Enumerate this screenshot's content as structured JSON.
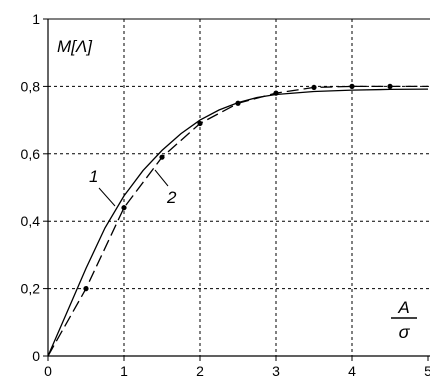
{
  "chart_data": {
    "type": "line",
    "x_ticks": [
      "0",
      "1",
      "2",
      "3",
      "4",
      "5"
    ],
    "y_ticks": [
      "0",
      "0,2",
      "0,4",
      "0,6",
      "0,8",
      "1"
    ],
    "xlim": [
      0,
      5
    ],
    "ylim": [
      0,
      1
    ],
    "ylabel": "M[Λ]",
    "xlabel_num": "A",
    "xlabel_den": "σ",
    "grid": true,
    "series": [
      {
        "name": "1",
        "style": "solid",
        "x": [
          0,
          0.25,
          0.5,
          0.75,
          1.0,
          1.25,
          1.5,
          1.75,
          2.0,
          2.25,
          2.5,
          2.75,
          3.0,
          3.5,
          4.0,
          4.5,
          5.0
        ],
        "y": [
          0,
          0.13,
          0.26,
          0.38,
          0.475,
          0.55,
          0.61,
          0.66,
          0.7,
          0.73,
          0.752,
          0.767,
          0.776,
          0.785,
          0.789,
          0.791,
          0.792
        ]
      },
      {
        "name": "2",
        "style": "dashed",
        "x": [
          0,
          0.5,
          1.0,
          1.5,
          2.0,
          2.5,
          3.0,
          3.5,
          4.0,
          4.5,
          5.0
        ],
        "y": [
          0,
          0.2,
          0.44,
          0.59,
          0.69,
          0.75,
          0.78,
          0.797,
          0.8,
          0.8,
          0.8
        ],
        "markers": [
          0.5,
          1.0,
          1.5,
          2.0,
          2.5,
          3.0,
          3.5,
          4.0,
          4.5
        ]
      }
    ],
    "annotations": [
      {
        "text": "1",
        "series": "1"
      },
      {
        "text": "2",
        "series": "2"
      }
    ]
  }
}
